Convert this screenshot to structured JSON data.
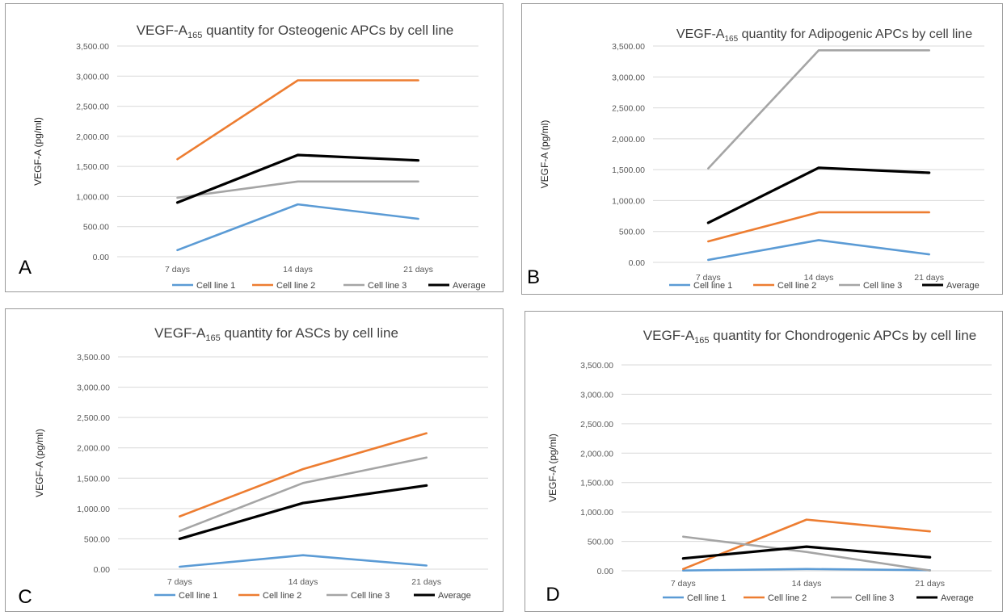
{
  "colors": {
    "cell_line_1": "#5b9bd5",
    "cell_line_2": "#ed7d31",
    "cell_line_3": "#a5a5a5",
    "average": "#000000",
    "gridline": "#d9d9d9"
  },
  "chart_data": [
    {
      "panel": "A",
      "type": "line",
      "title_main": "VEGF-A",
      "title_sub": "165",
      "title_rest": " quantity for Osteogenic APCs by cell line",
      "ylabel": "VEGF-A (pg/ml)",
      "xlabel": "",
      "categories": [
        "7 days",
        "14 days",
        "21 days"
      ],
      "ylim": [
        0,
        3500
      ],
      "yticks": [
        "0.00",
        "500.00",
        "1,000.00",
        "1,500.00",
        "2,000.00",
        "2,500.00",
        "3,000.00",
        "3,500.00"
      ],
      "grid": true,
      "legend_position": "bottom",
      "series": [
        {
          "name": "Cell line 1",
          "values": [
            110,
            870,
            630
          ]
        },
        {
          "name": "Cell line 2",
          "values": [
            1620,
            2930,
            2930
          ]
        },
        {
          "name": "Cell line 3",
          "values": [
            980,
            1250,
            1250
          ]
        },
        {
          "name": "Average",
          "values": [
            900,
            1690,
            1600
          ]
        }
      ]
    },
    {
      "panel": "B",
      "type": "line",
      "title_main": "VEGF-A",
      "title_sub": "165",
      "title_rest": " quantity for Adipogenic APCs by cell line",
      "ylabel": "VEGF-A (pg/ml)",
      "xlabel": "",
      "categories": [
        "7 days",
        "14 days",
        "21 days"
      ],
      "ylim": [
        0,
        3500
      ],
      "yticks": [
        "0.00",
        "500.00",
        "1,000.00",
        "1,500.00",
        "2,000.00",
        "2,500.00",
        "3,000.00",
        "3,500.00"
      ],
      "grid": true,
      "legend_position": "bottom",
      "series": [
        {
          "name": "Cell line 1",
          "values": [
            40,
            360,
            130
          ]
        },
        {
          "name": "Cell line 2",
          "values": [
            340,
            810,
            810
          ]
        },
        {
          "name": "Cell line 3",
          "values": [
            1520,
            3430,
            3430
          ]
        },
        {
          "name": "Average",
          "values": [
            640,
            1530,
            1450
          ]
        }
      ]
    },
    {
      "panel": "C",
      "type": "line",
      "title_main": "VEGF-A",
      "title_sub": "165",
      "title_rest": " quantity for ASCs by cell line",
      "ylabel": "VEGF-A (pg/ml)",
      "xlabel": "",
      "categories": [
        "7 days",
        "14 days",
        "21 days"
      ],
      "ylim": [
        0,
        3500
      ],
      "yticks": [
        "0.00",
        "500.00",
        "1,000.00",
        "1,500.00",
        "2,000.00",
        "2,500.00",
        "3,000.00",
        "3,500.00"
      ],
      "grid": true,
      "legend_position": "bottom",
      "series": [
        {
          "name": "Cell line 1",
          "values": [
            40,
            230,
            60
          ]
        },
        {
          "name": "Cell line 2",
          "values": [
            870,
            1650,
            2240
          ]
        },
        {
          "name": "Cell line 3",
          "values": [
            630,
            1420,
            1840
          ]
        },
        {
          "name": "Average",
          "values": [
            500,
            1090,
            1380
          ]
        }
      ]
    },
    {
      "panel": "D",
      "type": "line",
      "title_main": "VEGF-A",
      "title_sub": "165",
      "title_rest": " quantity for Chondrogenic APCs by cell line",
      "ylabel": "VEGF-A (pg/ml)",
      "xlabel": "",
      "categories": [
        "7 days",
        "14 days",
        "21 days"
      ],
      "ylim": [
        0,
        3500
      ],
      "yticks": [
        "0.00",
        "500.00",
        "1,000.00",
        "1,500.00",
        "2,000.00",
        "2,500.00",
        "3,000.00",
        "3,500.00"
      ],
      "grid": true,
      "legend_position": "bottom",
      "series": [
        {
          "name": "Cell line 1",
          "values": [
            5,
            30,
            10
          ]
        },
        {
          "name": "Cell line 2",
          "values": [
            30,
            870,
            670
          ]
        },
        {
          "name": "Cell line 3",
          "values": [
            580,
            320,
            5
          ]
        },
        {
          "name": "Average",
          "values": [
            210,
            410,
            230
          ]
        }
      ]
    }
  ]
}
